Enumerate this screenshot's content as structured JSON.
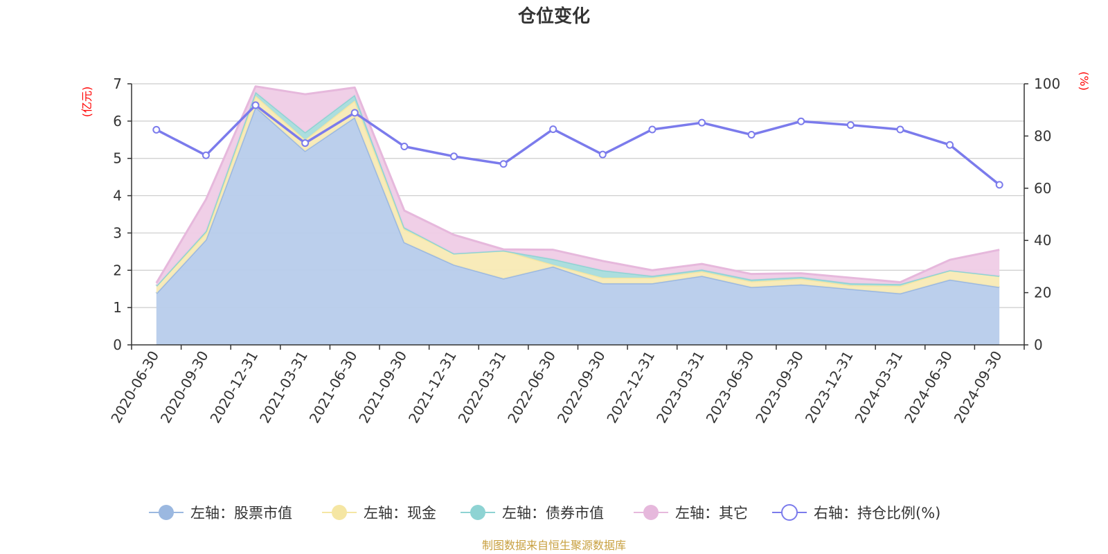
{
  "chart_data": {
    "type": "area",
    "title": "仓位变化",
    "left_axis": {
      "unit_label": "(亿元)",
      "ylim": [
        0,
        7
      ],
      "ticks": [
        0,
        1,
        2,
        3,
        4,
        5,
        6,
        7
      ]
    },
    "right_axis": {
      "unit_label": "(%)",
      "ylim": [
        0,
        100
      ],
      "ticks": [
        0,
        20,
        40,
        60,
        80,
        100
      ]
    },
    "categories": [
      "2020-06-30",
      "2020-09-30",
      "2020-12-31",
      "2021-03-31",
      "2021-06-30",
      "2021-09-30",
      "2021-12-31",
      "2022-03-31",
      "2022-06-30",
      "2022-09-30",
      "2022-12-31",
      "2023-03-31",
      "2023-06-30",
      "2023-09-30",
      "2023-12-31",
      "2024-03-31",
      "2024-06-30",
      "2024-09-30"
    ],
    "series": [
      {
        "name": "左轴：股票市值",
        "axis": "left",
        "stack": true,
        "color": "#9bb8e0",
        "fill": "#b7cceb",
        "values": [
          1.38,
          2.82,
          6.38,
          5.2,
          6.1,
          2.75,
          2.15,
          1.78,
          2.1,
          1.65,
          1.65,
          1.85,
          1.55,
          1.62,
          1.5,
          1.38,
          1.75,
          1.55
        ]
      },
      {
        "name": "左轴：现金",
        "axis": "left",
        "stack": true,
        "color": "#f5e6a3",
        "fill": "#f8eab5",
        "values": [
          0.2,
          0.18,
          0.3,
          0.3,
          0.45,
          0.35,
          0.3,
          0.75,
          0.05,
          0.15,
          0.15,
          0.12,
          0.15,
          0.15,
          0.1,
          0.2,
          0.25,
          0.3
        ]
      },
      {
        "name": "左轴：债券市值",
        "axis": "left",
        "stack": true,
        "color": "#8ed3d3",
        "fill": "#a8dcdc",
        "values": [
          0,
          0.05,
          0.1,
          0.2,
          0.15,
          0.05,
          0,
          0,
          0.15,
          0.2,
          0.05,
          0.05,
          0.05,
          0.05,
          0.05,
          0.05,
          0,
          0
        ]
      },
      {
        "name": "左轴：其它",
        "axis": "left",
        "stack": true,
        "color": "#e6b8dc",
        "fill": "#efcce6",
        "values": [
          0.08,
          0.85,
          0.15,
          1.02,
          0.2,
          0.45,
          0.5,
          0.03,
          0.25,
          0.25,
          0.15,
          0.15,
          0.15,
          0.1,
          0.15,
          0.05,
          0.28,
          0.7
        ]
      },
      {
        "name": "右轴：持仓比例(%)",
        "axis": "right",
        "type": "line",
        "color": "#7b7bec",
        "values": [
          82.4,
          72.6,
          91.8,
          77.3,
          88.9,
          76.0,
          72.2,
          69.3,
          82.6,
          72.9,
          82.5,
          85.1,
          80.5,
          85.6,
          84.2,
          82.5,
          76.6,
          61.3
        ]
      }
    ],
    "legend_position": "bottom",
    "grid": true
  },
  "footer": {
    "source": "制图数据来自恒生聚源数据库"
  }
}
